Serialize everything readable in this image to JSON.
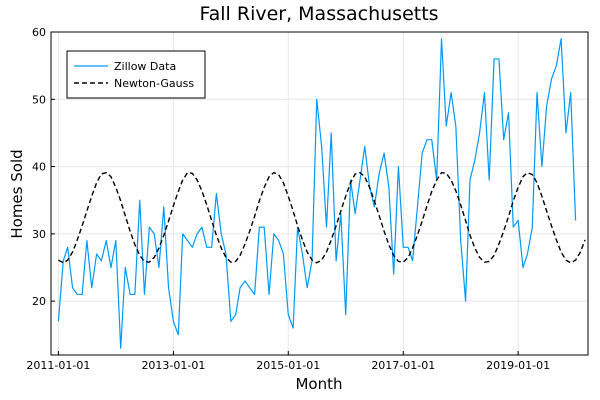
{
  "chart_data": {
    "type": "line",
    "title": "Fall River, Massachusetts",
    "xlabel": "Month",
    "ylabel": "Homes Sold",
    "xlim": [
      "2010-11-15",
      "2020-03-20"
    ],
    "ylim": [
      12,
      60
    ],
    "x_ticks": [
      "2011-01-01",
      "2013-01-01",
      "2015-01-01",
      "2017-01-01",
      "2019-01-01"
    ],
    "y_ticks": [
      20,
      30,
      40,
      50,
      60
    ],
    "grid": true,
    "legend_position": "top-left",
    "series": [
      {
        "name": "Zillow Data",
        "style": "solid",
        "color": "#009af9",
        "start": "2011-01",
        "values": [
          17,
          26,
          28,
          22,
          21,
          21,
          29,
          22,
          27,
          26,
          29,
          25,
          29,
          13,
          25,
          21,
          21,
          35,
          21,
          31,
          30,
          25,
          34,
          22,
          17,
          15,
          30,
          29,
          28,
          30,
          31,
          28,
          28,
          36,
          30,
          27,
          17,
          18,
          22,
          23,
          22,
          21,
          31,
          31,
          21,
          30,
          29,
          27,
          18,
          16,
          31,
          27,
          22,
          26,
          50,
          43,
          31,
          45,
          26,
          33,
          18,
          38,
          33,
          38,
          43,
          37,
          34,
          39,
          42,
          37,
          24,
          40,
          28,
          28,
          26,
          34,
          42,
          44,
          44,
          38,
          59,
          46,
          51,
          46,
          29,
          20,
          38,
          41,
          45,
          51,
          38,
          56,
          56,
          44,
          48,
          31,
          32,
          25,
          27,
          31,
          51,
          40,
          49,
          53,
          55,
          59,
          45,
          51,
          32
        ]
      },
      {
        "name": "Newton-Gauss",
        "style": "dashed",
        "color": "#000000",
        "start": "2011-01",
        "mean": 32.4,
        "amplitude": 6.65,
        "peak_month": 7,
        "values": [
          26.1,
          25.7,
          26.1,
          27.3,
          29.1,
          31.2,
          33.4,
          35.6,
          37.6,
          38.9,
          39.1,
          38.5,
          36.9,
          34.9,
          32.7,
          30.4,
          28.4,
          26.8,
          25.9,
          25.8,
          26.5,
          27.9,
          29.8,
          31.9,
          34.2,
          36.3,
          38.0,
          39.1,
          39.0,
          38.0,
          36.4,
          34.3,
          32.0,
          29.8,
          27.9,
          26.5,
          25.8,
          25.9,
          26.8,
          28.5,
          30.4,
          32.6,
          34.9,
          36.9,
          38.5,
          39.1,
          38.8,
          37.6,
          35.6,
          33.4,
          31.2,
          29.1,
          27.3,
          26.1,
          25.7,
          26.1,
          27.3,
          29.1,
          31.2,
          33.4,
          35.6,
          37.6,
          38.9,
          39.1,
          38.5,
          36.9,
          34.9,
          32.7,
          30.4,
          28.4,
          26.8,
          25.9,
          25.8,
          26.5,
          27.9,
          29.8,
          31.9,
          34.2,
          36.3,
          38.0,
          39.1,
          39.0,
          38.0,
          36.4,
          34.3,
          32.0,
          29.8,
          27.9,
          26.5,
          25.8,
          25.9,
          26.8,
          28.5,
          30.4,
          32.6,
          34.9,
          36.9,
          38.5,
          39.1,
          38.8,
          37.6,
          35.6,
          33.4,
          31.2,
          29.1,
          27.3,
          26.1,
          25.7,
          26.1,
          27.3,
          29.1
        ]
      }
    ]
  }
}
